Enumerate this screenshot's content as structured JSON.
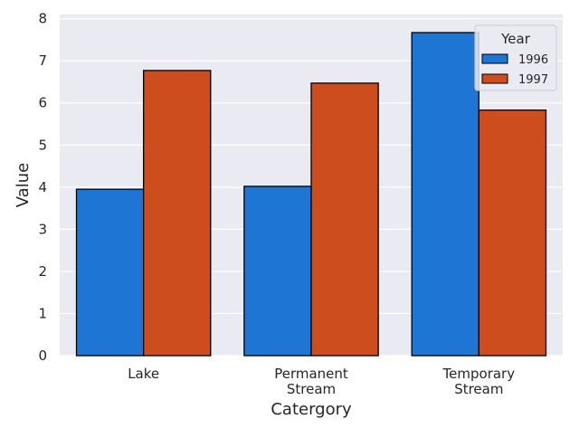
{
  "chart_data": {
    "type": "bar",
    "title": "",
    "xlabel": "Catergory",
    "ylabel": "Value",
    "categories": [
      [
        "Lake"
      ],
      [
        "Permanent",
        "Stream"
      ],
      [
        "Temporary",
        "Stream"
      ]
    ],
    "series": [
      {
        "name": "1996",
        "color": "#1f75d4",
        "values": [
          3.95,
          4.02,
          7.67
        ]
      },
      {
        "name": "1997",
        "color": "#cd4d1e",
        "values": [
          6.77,
          6.47,
          5.83
        ]
      }
    ],
    "ylim": [
      0,
      8.1
    ],
    "yticks": [
      "0",
      "1",
      "2",
      "3",
      "4",
      "5",
      "6",
      "7",
      "8"
    ],
    "grid": true,
    "background": "#eaeaf2",
    "legend": {
      "title": "Year",
      "position": "top-right"
    }
  }
}
